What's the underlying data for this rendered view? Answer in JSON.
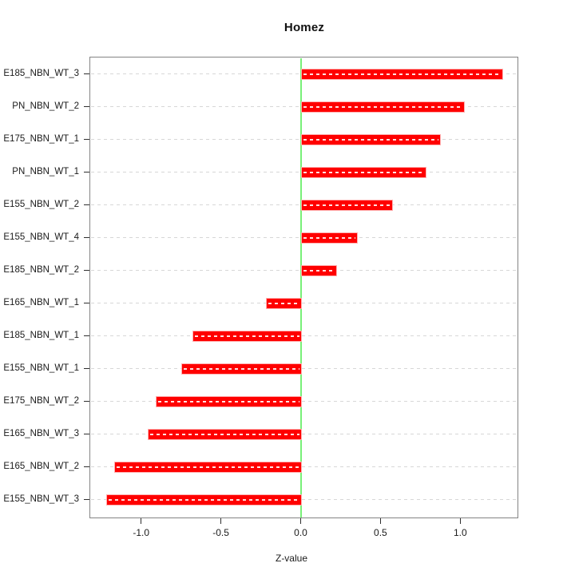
{
  "page": {
    "background_color": "#ffffff"
  },
  "chart_data": {
    "type": "bar",
    "orientation": "horizontal",
    "title": "Homez",
    "xlabel": "Z-value",
    "ylabel": "",
    "categories": [
      "E185_NBN_WT_3",
      "PN_NBN_WT_2",
      "E175_NBN_WT_1",
      "PN_NBN_WT_1",
      "E155_NBN_WT_2",
      "E155_NBN_WT_4",
      "E185_NBN_WT_2",
      "E165_NBN_WT_1",
      "E185_NBN_WT_1",
      "E155_NBN_WT_1",
      "E175_NBN_WT_2",
      "E165_NBN_WT_3",
      "E165_NBN_WT_2",
      "E155_NBN_WT_3"
    ],
    "values": [
      1.26,
      1.02,
      0.87,
      0.78,
      0.57,
      0.35,
      0.22,
      -0.22,
      -0.68,
      -0.75,
      -0.91,
      -0.96,
      -1.17,
      -1.22
    ],
    "xticks": [
      "-1.0",
      "-0.5",
      "0.0",
      "0.5",
      "1.0"
    ],
    "xtick_values": [
      -1.0,
      -0.5,
      0.0,
      0.5,
      1.0
    ],
    "xlim": [
      -1.32,
      1.36
    ],
    "grid": true,
    "grid_style": "dashed",
    "grid_color": "#d7d7d7",
    "bar_color": "#ff0000",
    "bar_edge_color": "#ffb0b0",
    "bar_inner_dash_color": "#ffffff",
    "zero_line_color": "#78f078",
    "box_color": "#848484",
    "legend": null
  }
}
